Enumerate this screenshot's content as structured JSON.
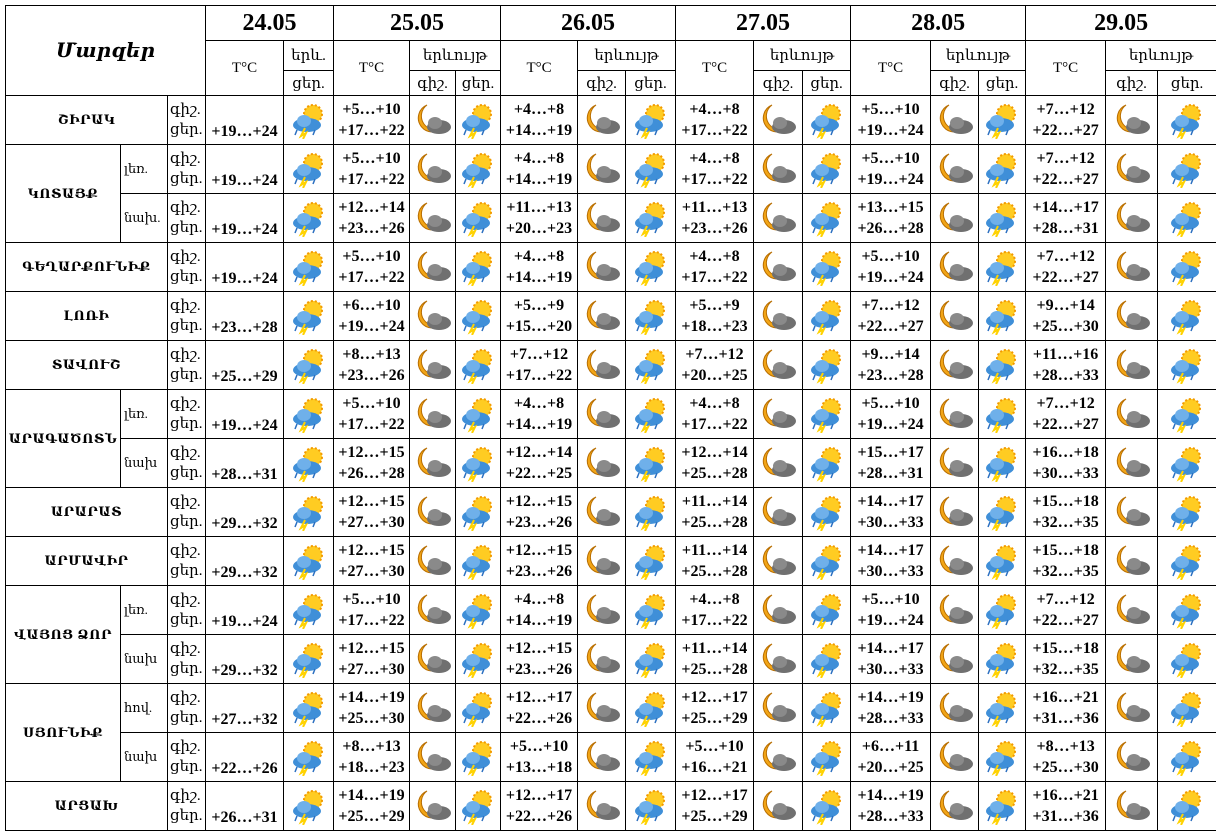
{
  "header": {
    "title": "Մարզեր",
    "dates": [
      "24.05",
      "25.05",
      "26.05",
      "27.05",
      "28.05",
      "29.05"
    ],
    "temp_label": "T°C",
    "phen_label": "երևույթ",
    "phen_short": "երև.",
    "night": "գիշ.",
    "day": "ցեր."
  },
  "regions": [
    {
      "name": "ՇԻՐԱԿ",
      "parts": [
        {
          "t24": "+19…+24",
          "days": [
            [
              "+5…+10",
              "+17…+22"
            ],
            [
              "+4…+8",
              "+14…+19"
            ],
            [
              "+4…+8",
              "+17…+22"
            ],
            [
              "+5…+10",
              "+19…+24"
            ],
            [
              "+7…+12",
              "+22…+27"
            ]
          ]
        }
      ]
    },
    {
      "name": "ԿՈՏԱՅՔ",
      "parts": [
        {
          "zone": "լեռ.",
          "t24": "+19…+24",
          "days": [
            [
              "+5…+10",
              "+17…+22"
            ],
            [
              "+4…+8",
              "+14…+19"
            ],
            [
              "+4…+8",
              "+17…+22"
            ],
            [
              "+5…+10",
              "+19…+24"
            ],
            [
              "+7…+12",
              "+22…+27"
            ]
          ]
        },
        {
          "zone": "նախ.",
          "t24": "+19…+24",
          "days": [
            [
              "+12…+14",
              "+23…+26"
            ],
            [
              "+11…+13",
              "+20…+23"
            ],
            [
              "+11…+13",
              "+23…+26"
            ],
            [
              "+13…+15",
              "+26…+28"
            ],
            [
              "+14…+17",
              "+28…+31"
            ]
          ]
        }
      ]
    },
    {
      "name": "ԳԵՂԱՐՔՈՒՆԻՔ",
      "parts": [
        {
          "t24": "+19…+24",
          "days": [
            [
              "+5…+10",
              "+17…+22"
            ],
            [
              "+4…+8",
              "+14…+19"
            ],
            [
              "+4…+8",
              "+17…+22"
            ],
            [
              "+5…+10",
              "+19…+24"
            ],
            [
              "+7…+12",
              "+22…+27"
            ]
          ]
        }
      ]
    },
    {
      "name": "ԼՈՌԻ",
      "parts": [
        {
          "t24": "+23…+28",
          "days": [
            [
              "+6…+10",
              "+19…+24"
            ],
            [
              "+5…+9",
              "+15…+20"
            ],
            [
              "+5…+9",
              "+18…+23"
            ],
            [
              "+7…+12",
              "+22…+27"
            ],
            [
              "+9…+14",
              "+25…+30"
            ]
          ]
        }
      ]
    },
    {
      "name": "ՏԱՎՈՒՇ",
      "parts": [
        {
          "t24": "+25…+29",
          "days": [
            [
              "+8…+13",
              "+23…+26"
            ],
            [
              "+7…+12",
              "+17…+22"
            ],
            [
              "+7…+12",
              "+20…+25"
            ],
            [
              "+9…+14",
              "+23…+28"
            ],
            [
              "+11…+16",
              "+28…+33"
            ]
          ]
        }
      ]
    },
    {
      "name": "ԱՐԱԳԱԾՈՏՆ",
      "parts": [
        {
          "zone": "լեռ.",
          "t24": "+19…+24",
          "days": [
            [
              "+5…+10",
              "+17…+22"
            ],
            [
              "+4…+8",
              "+14…+19"
            ],
            [
              "+4…+8",
              "+17…+22"
            ],
            [
              "+5…+10",
              "+19…+24"
            ],
            [
              "+7…+12",
              "+22…+27"
            ]
          ]
        },
        {
          "zone": "նախ",
          "t24": "+28…+31",
          "days": [
            [
              "+12…+15",
              "+26…+28"
            ],
            [
              "+12…+14",
              "+22…+25"
            ],
            [
              "+12…+14",
              "+25…+28"
            ],
            [
              "+15…+17",
              "+28…+31"
            ],
            [
              "+16…+18",
              "+30…+33"
            ]
          ]
        }
      ]
    },
    {
      "name": "ԱՐԱՐԱՏ",
      "parts": [
        {
          "t24": "+29…+32",
          "days": [
            [
              "+12…+15",
              "+27…+30"
            ],
            [
              "+12…+15",
              "+23…+26"
            ],
            [
              "+11…+14",
              "+25…+28"
            ],
            [
              "+14…+17",
              "+30…+33"
            ],
            [
              "+15…+18",
              "+32…+35"
            ]
          ]
        }
      ]
    },
    {
      "name": "ԱՐՄԱՎԻՐ",
      "parts": [
        {
          "t24": "+29…+32",
          "days": [
            [
              "+12…+15",
              "+27…+30"
            ],
            [
              "+12…+15",
              "+23…+26"
            ],
            [
              "+11…+14",
              "+25…+28"
            ],
            [
              "+14…+17",
              "+30…+33"
            ],
            [
              "+15…+18",
              "+32…+35"
            ]
          ]
        }
      ]
    },
    {
      "name": "ՎԱՅՈՑ ՁՈՐ",
      "parts": [
        {
          "zone": "լեռ.",
          "t24": "+19…+24",
          "days": [
            [
              "+5…+10",
              "+17…+22"
            ],
            [
              "+4…+8",
              "+14…+19"
            ],
            [
              "+4…+8",
              "+17…+22"
            ],
            [
              "+5…+10",
              "+19…+24"
            ],
            [
              "+7…+12",
              "+22…+27"
            ]
          ]
        },
        {
          "zone": "նախ",
          "t24": "+29…+32",
          "days": [
            [
              "+12…+15",
              "+27…+30"
            ],
            [
              "+12…+15",
              "+23…+26"
            ],
            [
              "+11…+14",
              "+25…+28"
            ],
            [
              "+14…+17",
              "+30…+33"
            ],
            [
              "+15…+18",
              "+32…+35"
            ]
          ]
        }
      ]
    },
    {
      "name": "ՍՅՈՒՆԻՔ",
      "parts": [
        {
          "zone": "հով.",
          "t24": "+27…+32",
          "days": [
            [
              "+14…+19",
              "+25…+30"
            ],
            [
              "+12…+17",
              "+22…+26"
            ],
            [
              "+12…+17",
              "+25…+29"
            ],
            [
              "+14…+19",
              "+28…+33"
            ],
            [
              "+16…+21",
              "+31…+36"
            ]
          ]
        },
        {
          "zone": "նախ",
          "t24": "+22…+26",
          "days": [
            [
              "+8…+13",
              "+18…+23"
            ],
            [
              "+5…+10",
              "+13…+18"
            ],
            [
              "+5…+10",
              "+16…+21"
            ],
            [
              "+6…+11",
              "+20…+25"
            ],
            [
              "+8…+13",
              "+25…+30"
            ]
          ]
        }
      ]
    },
    {
      "name": "ԱՐՑԱԽ",
      "parts": [
        {
          "t24": "+26…+31",
          "days": [
            [
              "+14…+19",
              "+25…+29"
            ],
            [
              "+12…+17",
              "+22…+26"
            ],
            [
              "+12…+17",
              "+25…+29"
            ],
            [
              "+14…+19",
              "+28…+33"
            ],
            [
              "+16…+21",
              "+31…+36"
            ]
          ]
        }
      ]
    }
  ]
}
